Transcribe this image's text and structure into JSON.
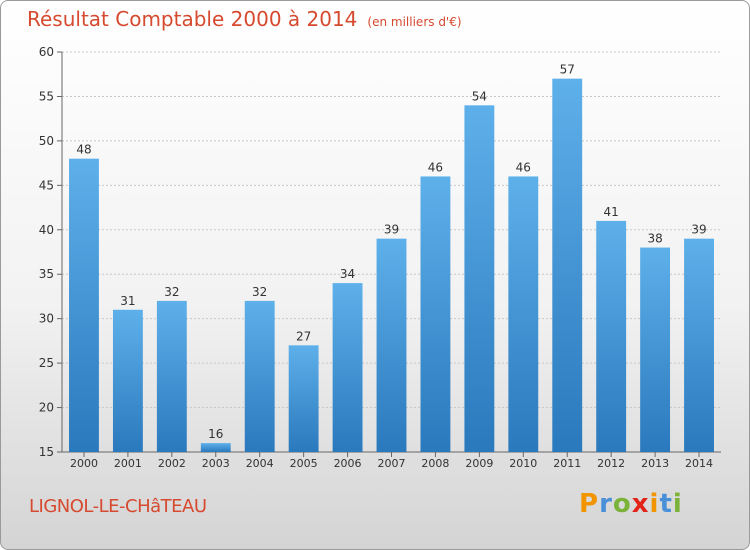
{
  "header": {
    "title": "Résultat Comptable 2000 à 2014",
    "subtitle": "(en milliers d'€)"
  },
  "footer": {
    "commune": "LIGNOL-LE-CHâTEAU",
    "logo_letters": [
      "P",
      "r",
      "o",
      "x",
      "i",
      "t",
      "i"
    ],
    "logo_colors": [
      "#f29400",
      "#4a90d9",
      "#7bb33a",
      "#e2231a",
      "#f29400",
      "#4a90d9",
      "#7bb33a"
    ]
  },
  "chart_data": {
    "type": "bar",
    "categories": [
      "2000",
      "2001",
      "2002",
      "2003",
      "2004",
      "2005",
      "2006",
      "2007",
      "2008",
      "2009",
      "2010",
      "2011",
      "2012",
      "2013",
      "2014"
    ],
    "values": [
      48,
      31,
      32,
      16,
      32,
      27,
      34,
      39,
      46,
      54,
      46,
      57,
      41,
      38,
      39
    ],
    "title": "Résultat Comptable 2000 à 2014",
    "xlabel": "",
    "ylabel": "",
    "ylim": [
      15,
      60
    ],
    "yticks": [
      15,
      20,
      25,
      30,
      35,
      40,
      45,
      50,
      55,
      60
    ],
    "grid": true,
    "bar_color": "#3d8fd6",
    "legend": "none"
  }
}
